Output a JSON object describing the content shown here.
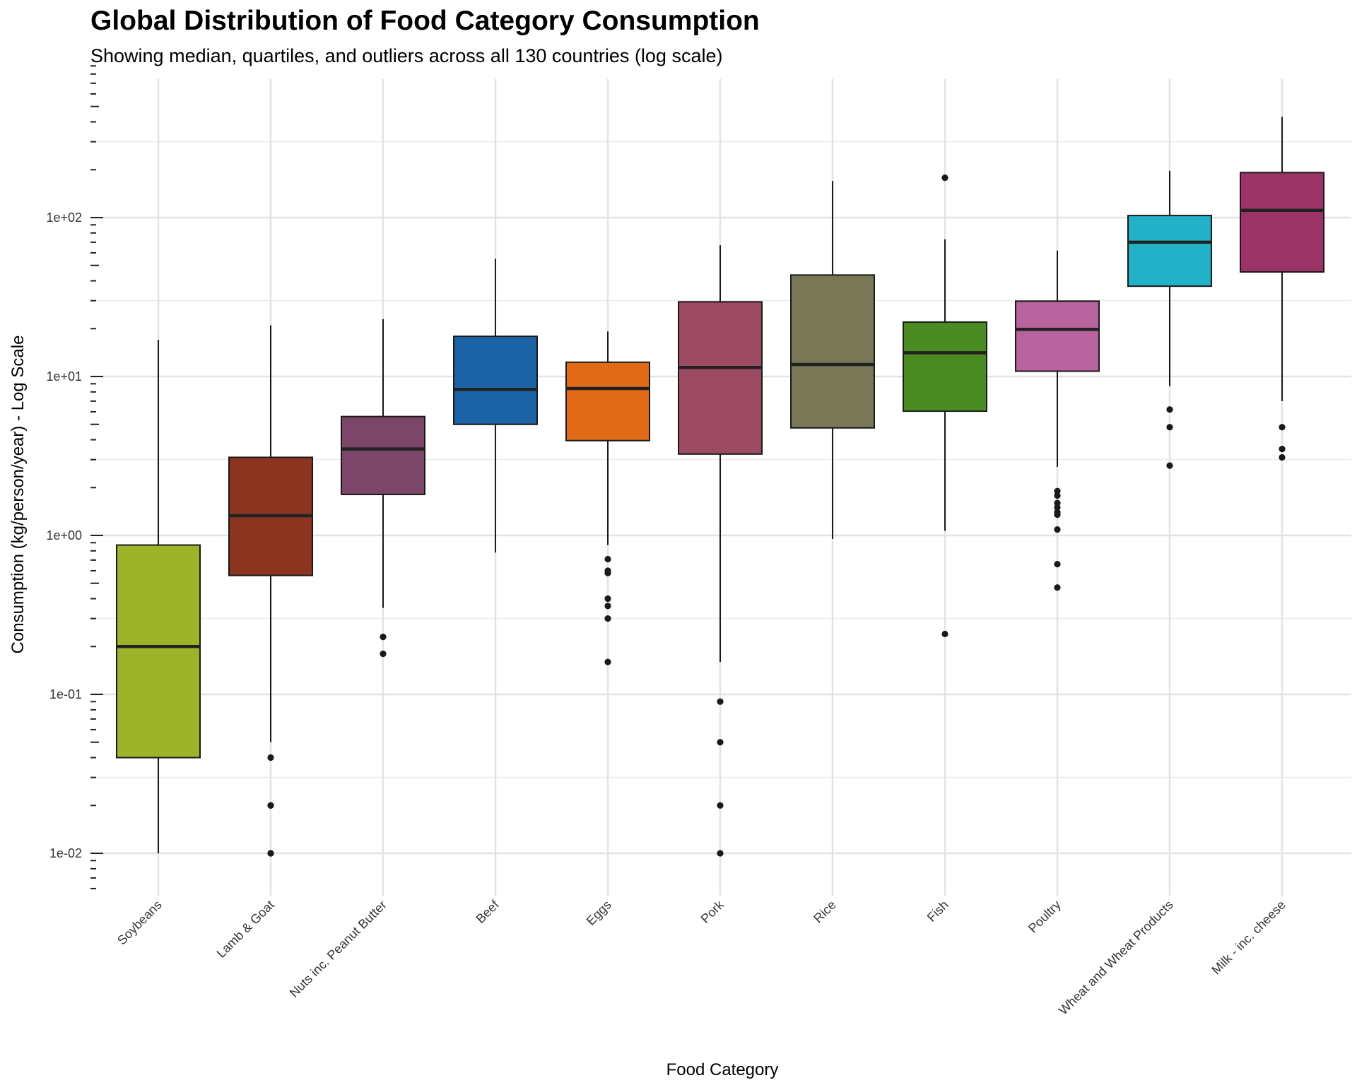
{
  "chart_data": {
    "type": "box",
    "title": "Global Distribution of Food Category Consumption",
    "subtitle": "Showing median, quartiles, and outliers across all 130 countries (log scale)",
    "xlabel": "Food Category",
    "ylabel": "Consumption (kg/person/year) - Log Scale",
    "y_scale": "log10",
    "ylim": [
      0.0055,
      900
    ],
    "y_tick_values": [
      0.01,
      0.1,
      1,
      10,
      100
    ],
    "y_tick_labels": [
      "1e-02",
      "1e-01",
      "1e+00",
      "1e+01",
      "1e+02"
    ],
    "grid": true,
    "legend": "none",
    "categories": [
      "Soybeans",
      "Lamb & Goat",
      "Nuts inc. Peanut Butter",
      "Beef",
      "Eggs",
      "Pork",
      "Rice",
      "Fish",
      "Poultry",
      "Wheat and Wheat Products",
      "Milk - inc. cheese"
    ],
    "series": [
      {
        "category": "Soybeans",
        "color": "#9db32a",
        "whisker_low": 0.01,
        "q1": 0.04,
        "median": 0.2,
        "q3": 0.87,
        "whisker_high": 17,
        "outliers": []
      },
      {
        "category": "Lamb & Goat",
        "color": "#8b3520",
        "whisker_low": 0.05,
        "q1": 0.56,
        "median": 1.33,
        "q3": 3.1,
        "whisker_high": 21,
        "outliers": [
          0.04,
          0.02,
          0.02,
          0.01,
          0.01
        ]
      },
      {
        "category": "Nuts inc. Peanut Butter",
        "color": "#7b4668",
        "whisker_low": 0.35,
        "q1": 1.81,
        "median": 3.5,
        "q3": 5.6,
        "whisker_high": 23,
        "outliers": [
          0.23,
          0.18
        ]
      },
      {
        "category": "Beef",
        "color": "#1c63a6",
        "whisker_low": 0.78,
        "q1": 5.0,
        "median": 8.3,
        "q3": 17.9,
        "whisker_high": 55,
        "outliers": []
      },
      {
        "category": "Eggs",
        "color": "#e06a18",
        "whisker_low": 0.87,
        "q1": 3.95,
        "median": 8.4,
        "q3": 12.3,
        "whisker_high": 19.2,
        "outliers": [
          0.71,
          0.6,
          0.58,
          0.4,
          0.36,
          0.3,
          0.16
        ]
      },
      {
        "category": "Pork",
        "color": "#9c4b63",
        "whisker_low": 0.16,
        "q1": 3.25,
        "median": 11.4,
        "q3": 29.5,
        "whisker_high": 67,
        "outliers": [
          0.09,
          0.05,
          0.02,
          0.01
        ]
      },
      {
        "category": "Rice",
        "color": "#787856",
        "whisker_low": 0.95,
        "q1": 4.75,
        "median": 11.9,
        "q3": 43.5,
        "whisker_high": 170,
        "outliers": []
      },
      {
        "category": "Fish",
        "color": "#4a8c21",
        "whisker_low": 1.07,
        "q1": 6.05,
        "median": 14.1,
        "q3": 22,
        "whisker_high": 73,
        "outliers": [
          178,
          0.24
        ]
      },
      {
        "category": "Poultry",
        "color": "#b8629e",
        "whisker_low": 2.7,
        "q1": 10.8,
        "median": 19.8,
        "q3": 29.8,
        "whisker_high": 62,
        "outliers": [
          1.9,
          1.78,
          1.6,
          1.5,
          1.4,
          1.35,
          1.09,
          0.66,
          0.47
        ]
      },
      {
        "category": "Wheat and Wheat Products",
        "color": "#22b1c6",
        "whisker_low": 8.7,
        "q1": 37,
        "median": 70,
        "q3": 103,
        "whisker_high": 197,
        "outliers": [
          6.2,
          4.8,
          2.75
        ]
      },
      {
        "category": "Milk - inc. cheese",
        "color": "#9c3367",
        "whisker_low": 7,
        "q1": 45.5,
        "median": 111,
        "q3": 192,
        "whisker_high": 430,
        "outliers": [
          4.8,
          3.5,
          3.1
        ]
      }
    ]
  }
}
